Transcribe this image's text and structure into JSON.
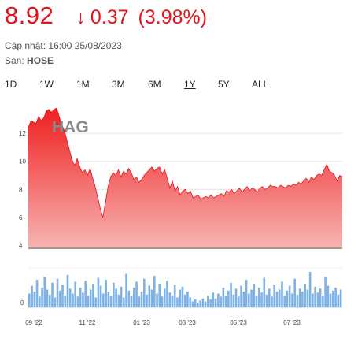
{
  "quote": {
    "price": "8.92",
    "arrow": "↓",
    "change": "0.37",
    "change_pct": "(3.98%)",
    "color": "#e3141b"
  },
  "info": {
    "updated_label": "Cập nhật:",
    "updated_value": "16:00 25/08/2023",
    "exchange_label": "Sàn:",
    "exchange_value": "HOSE"
  },
  "ranges": {
    "options": [
      "1D",
      "1W",
      "1M",
      "3M",
      "6M",
      "1Y",
      "5Y",
      "ALL"
    ],
    "selected": "1Y"
  },
  "chart_data": [
    {
      "type": "area",
      "title": "HAG",
      "ylim": [
        3.8,
        14.2
      ],
      "yticks": [
        "4",
        "6",
        "8",
        "10",
        "12"
      ],
      "xticks": [
        "09 '22",
        "11 '22",
        "01 '23",
        "03 '23",
        "05 '23",
        "07 '23"
      ],
      "grid": true,
      "fill_color": "#f06060",
      "y": [
        12.4,
        12.9,
        12.8,
        12.7,
        13.2,
        12.9,
        13.1,
        13.6,
        13.7,
        13.5,
        13.7,
        13.8,
        13.2,
        12.6,
        12.2,
        11.5,
        10.8,
        10.1,
        9.7,
        10.2,
        9.6,
        9.2,
        9.4,
        9.0,
        9.5,
        8.8,
        8.2,
        7.4,
        6.6,
        6.0,
        7.1,
        8.2,
        8.9,
        9.2,
        9.0,
        9.4,
        8.9,
        9.3,
        9.1,
        9.5,
        9.2,
        8.7,
        8.9,
        8.5,
        8.7,
        9.0,
        9.2,
        9.4,
        9.6,
        9.3,
        9.5,
        9.6,
        9.1,
        9.4,
        8.8,
        8.1,
        8.6,
        7.9,
        8.2,
        7.6,
        7.9,
        8.0,
        7.7,
        7.9,
        7.4,
        7.5,
        7.6,
        7.3,
        7.4,
        7.5,
        7.4,
        7.6,
        7.4,
        7.5,
        7.6,
        7.7,
        7.5,
        7.9,
        7.8,
        8.0,
        7.7,
        7.9,
        8.1,
        7.8,
        8.0,
        8.2,
        7.9,
        8.1,
        8.0,
        7.8,
        8.1,
        8.2,
        8.0,
        8.1,
        8.3,
        8.2,
        8.2,
        8.1,
        8.3,
        8.2,
        8.1,
        8.3,
        8.2,
        8.4,
        8.3,
        8.5,
        8.4,
        8.6,
        8.8,
        8.5,
        8.9,
        8.7,
        9.0,
        9.1,
        9.0,
        9.4,
        9.8,
        9.3,
        9.2,
        9.0,
        8.6,
        9.0,
        8.92
      ]
    },
    {
      "type": "bar",
      "ylim": [
        0,
        4
      ],
      "yticks": [
        "0"
      ],
      "fill_color": "#7eb2e6",
      "values": [
        1.4,
        2.2,
        1.6,
        2.8,
        1.1,
        2.0,
        3.1,
        1.8,
        1.3,
        2.5,
        1.0,
        2.9,
        1.7,
        2.3,
        1.2,
        3.3,
        1.9,
        1.4,
        2.6,
        1.1,
        2.0,
        1.5,
        2.7,
        1.2,
        1.8,
        2.4,
        1.0,
        3.0,
        2.2,
        1.4,
        2.8,
        1.6,
        1.2,
        2.5,
        1.9,
        1.3,
        2.1,
        1.0,
        3.4,
        1.7,
        1.2,
        2.0,
        2.6,
        1.1,
        1.6,
        2.9,
        1.3,
        2.2,
        1.8,
        3.2,
        1.4,
        2.4,
        1.1,
        1.9,
        2.7,
        1.5,
        1.2,
        2.3,
        1.0,
        1.8,
        2.1,
        1.3,
        1.6,
        1.0,
        0.6,
        0.8,
        0.5,
        0.7,
        0.9,
        0.6,
        1.2,
        0.8,
        1.5,
        0.9,
        1.4,
        1.1,
        2.0,
        1.2,
        1.7,
        2.5,
        1.3,
        1.9,
        1.1,
        2.2,
        1.6,
        2.8,
        1.4,
        1.8,
        2.4,
        1.2,
        2.0,
        1.5,
        3.0,
        1.3,
        1.9,
        1.1,
        2.3,
        1.6,
        1.8,
        2.6,
        1.2,
        1.7,
        2.2,
        1.4,
        2.9,
        1.3,
        1.9,
        1.6,
        2.4,
        1.8,
        3.6,
        1.4,
        2.1,
        1.5,
        1.9,
        1.2,
        3.1,
        2.2,
        1.4,
        1.7,
        2.0,
        1.3,
        1.8
      ]
    }
  ]
}
